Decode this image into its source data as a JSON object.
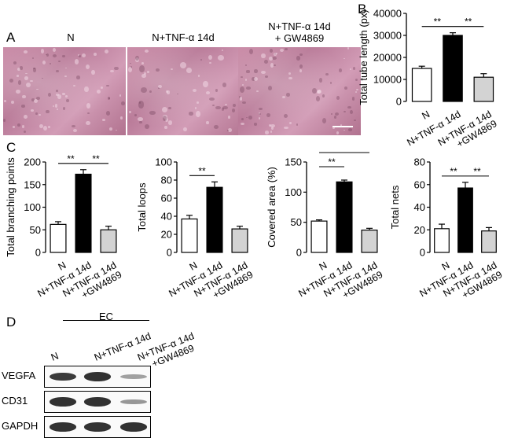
{
  "panels": {
    "a": "A",
    "b": "B",
    "c": "C",
    "d": "D"
  },
  "conditions": {
    "n": "N",
    "tnf": "N+TNF-α 14d",
    "tnf_gw_line1": "N+TNF-α 14d",
    "tnf_gw_line2": "+ GW4869"
  },
  "colors": {
    "n": "#ffffff",
    "tnf": "#000000",
    "gw": "#d3d3d3"
  },
  "chart_data": [
    {
      "id": "tube",
      "type": "bar",
      "ylabel": "Total tube length (px)",
      "ylim": [
        0,
        40000
      ],
      "yticks": [
        0,
        10000,
        20000,
        30000,
        40000
      ],
      "categories": [
        "N",
        "N+TNF-α 14d",
        "N+TNF-α 14d\n+GW4869"
      ],
      "values": [
        15000,
        30000,
        11000
      ],
      "errors": [
        1000,
        1200,
        1600
      ],
      "significance": [
        {
          "from": 0,
          "to": 1,
          "label": "**"
        },
        {
          "from": 1,
          "to": 2,
          "label": "**"
        }
      ]
    },
    {
      "id": "branching",
      "type": "bar",
      "ylabel": "Total branching points",
      "ylim": [
        0,
        200
      ],
      "yticks": [
        0,
        50,
        100,
        150,
        200
      ],
      "categories": [
        "N",
        "N+TNF-α 14d",
        "N+TNF-α 14d\n+GW4869"
      ],
      "values": [
        62,
        173,
        50
      ],
      "errors": [
        6,
        10,
        8
      ],
      "significance": [
        {
          "from": 0,
          "to": 1,
          "label": "**"
        },
        {
          "from": 1,
          "to": 2,
          "label": "**"
        }
      ]
    },
    {
      "id": "loops",
      "type": "bar",
      "ylabel": "Total loops",
      "ylim": [
        0,
        100
      ],
      "yticks": [
        0,
        20,
        40,
        60,
        80,
        100
      ],
      "categories": [
        "N",
        "N+TNF-α 14d",
        "N+TNF-α 14d\n+GW4869"
      ],
      "values": [
        37,
        72,
        26
      ],
      "errors": [
        4,
        6,
        3
      ],
      "significance": [
        {
          "from": 0,
          "to": 1,
          "label": "**"
        }
      ]
    },
    {
      "id": "area",
      "type": "bar",
      "ylabel": "Covered area (%)",
      "ylim": [
        0,
        150
      ],
      "yticks": [
        0,
        50,
        100,
        150
      ],
      "categories": [
        "N",
        "N+TNF-α 14d",
        "N+TNF-α 14d\n+GW4869"
      ],
      "values": [
        52,
        117,
        37
      ],
      "errors": [
        2,
        3,
        3
      ],
      "significance": [
        {
          "from": 0,
          "to": 1,
          "label": "**"
        },
        {
          "from": 0,
          "to": 2,
          "label": "**"
        }
      ]
    },
    {
      "id": "nets",
      "type": "bar",
      "ylabel": "Total nets",
      "ylim": [
        0,
        80
      ],
      "yticks": [
        0,
        20,
        40,
        60,
        80
      ],
      "categories": [
        "N",
        "N+TNF-α 14d",
        "N+TNF-α 14d\n+GW4869"
      ],
      "values": [
        21,
        57,
        19
      ],
      "errors": [
        4,
        5,
        3
      ],
      "significance": [
        {
          "from": 0,
          "to": 1,
          "label": "**"
        },
        {
          "from": 1,
          "to": 2,
          "label": "**"
        }
      ]
    }
  ],
  "blot": {
    "group_label": "EC",
    "lanes": [
      "N",
      "N+TNF-α 14d",
      "N+TNF-α 14d\n+GW4869"
    ],
    "rows": [
      {
        "label": "VEGFA",
        "intensity": [
          0.85,
          0.9,
          0.3
        ]
      },
      {
        "label": "CD31",
        "intensity": [
          0.9,
          0.9,
          0.35
        ]
      },
      {
        "label": "GAPDH",
        "intensity": [
          0.9,
          0.9,
          0.9
        ]
      }
    ]
  }
}
